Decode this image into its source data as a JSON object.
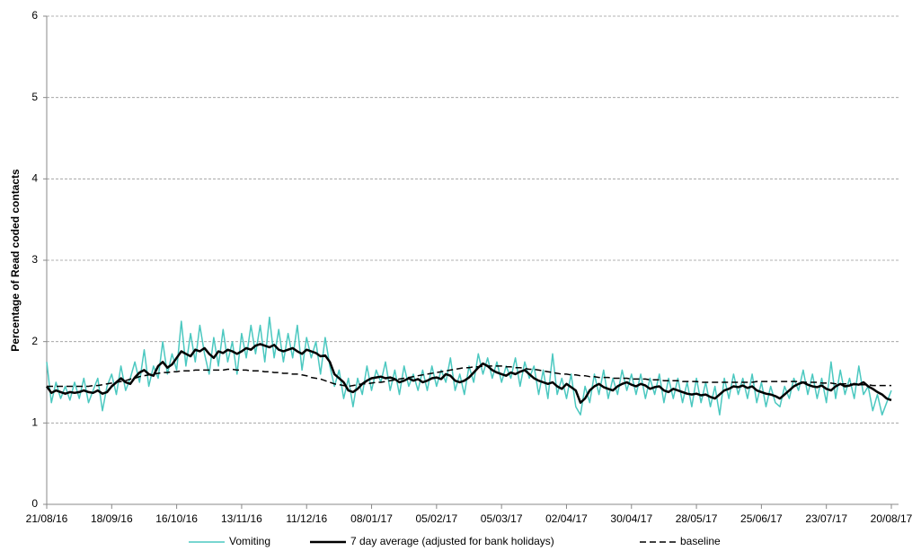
{
  "chart_data": {
    "type": "line",
    "y_label": "Percentage of Read coded contacts",
    "ylim": [
      0,
      6
    ],
    "yticks": [
      0,
      1,
      2,
      3,
      4,
      5,
      6
    ],
    "grid": true,
    "legend": "bottom",
    "x": [
      "21/08/16",
      "23/08/16",
      "25/08/16",
      "27/08/16",
      "29/08/16",
      "31/08/16",
      "02/09/16",
      "04/09/16",
      "06/09/16",
      "08/09/16",
      "10/09/16",
      "12/09/16",
      "14/09/16",
      "16/09/16",
      "18/09/16",
      "20/09/16",
      "22/09/16",
      "24/09/16",
      "26/09/16",
      "28/09/16",
      "30/09/16",
      "02/10/16",
      "04/10/16",
      "06/10/16",
      "08/10/16",
      "10/10/16",
      "12/10/16",
      "14/10/16",
      "16/10/16",
      "18/10/16",
      "20/10/16",
      "22/10/16",
      "24/10/16",
      "26/10/16",
      "28/10/16",
      "30/10/16",
      "01/11/16",
      "03/11/16",
      "05/11/16",
      "07/11/16",
      "09/11/16",
      "11/11/16",
      "13/11/16",
      "15/11/16",
      "17/11/16",
      "19/11/16",
      "21/11/16",
      "23/11/16",
      "25/11/16",
      "27/11/16",
      "29/11/16",
      "01/12/16",
      "03/12/16",
      "05/12/16",
      "07/12/16",
      "09/12/16",
      "11/12/16",
      "13/12/16",
      "15/12/16",
      "17/12/16",
      "19/12/16",
      "21/12/16",
      "23/12/16",
      "25/12/16",
      "27/12/16",
      "29/12/16",
      "31/12/16",
      "02/01/17",
      "04/01/17",
      "06/01/17",
      "08/01/17",
      "10/01/17",
      "12/01/17",
      "14/01/17",
      "16/01/17",
      "18/01/17",
      "20/01/17",
      "22/01/17",
      "24/01/17",
      "26/01/17",
      "28/01/17",
      "30/01/17",
      "01/02/17",
      "03/02/17",
      "05/02/17",
      "07/02/17",
      "09/02/17",
      "11/02/17",
      "13/02/17",
      "15/02/17",
      "17/02/17",
      "19/02/17",
      "21/02/17",
      "23/02/17",
      "25/02/17",
      "27/02/17",
      "01/03/17",
      "03/03/17",
      "05/03/17",
      "07/03/17",
      "09/03/17",
      "11/03/17",
      "13/03/17",
      "15/03/17",
      "17/03/17",
      "19/03/17",
      "21/03/17",
      "23/03/17",
      "25/03/17",
      "27/03/17",
      "29/03/17",
      "31/03/17",
      "02/04/17",
      "04/04/17",
      "06/04/17",
      "08/04/17",
      "10/04/17",
      "12/04/17",
      "14/04/17",
      "16/04/17",
      "18/04/17",
      "20/04/17",
      "22/04/17",
      "24/04/17",
      "26/04/17",
      "28/04/17",
      "30/04/17",
      "02/05/17",
      "04/05/17",
      "06/05/17",
      "08/05/17",
      "10/05/17",
      "12/05/17",
      "14/05/17",
      "16/05/17",
      "18/05/17",
      "20/05/17",
      "22/05/17",
      "24/05/17",
      "26/05/17",
      "28/05/17",
      "30/05/17",
      "01/06/17",
      "03/06/17",
      "05/06/17",
      "07/06/17",
      "09/06/17",
      "11/06/17",
      "13/06/17",
      "15/06/17",
      "17/06/17",
      "19/06/17",
      "21/06/17",
      "23/06/17",
      "25/06/17",
      "27/06/17",
      "29/06/17",
      "01/07/17",
      "03/07/17",
      "05/07/17",
      "07/07/17",
      "09/07/17",
      "11/07/17",
      "13/07/17",
      "15/07/17",
      "17/07/17",
      "19/07/17",
      "21/07/17",
      "23/07/17",
      "25/07/17",
      "27/07/17",
      "29/07/17",
      "31/07/17",
      "02/08/17",
      "04/08/17",
      "06/08/17",
      "08/08/17",
      "10/08/17",
      "12/08/17",
      "14/08/17",
      "16/08/17",
      "18/08/17",
      "20/08/17"
    ],
    "series": [
      {
        "name": "Vomiting",
        "color": "#4bc8c0",
        "width": 1.5,
        "dashed": false,
        "values": [
          1.75,
          1.25,
          1.5,
          1.3,
          1.45,
          1.28,
          1.5,
          1.3,
          1.55,
          1.25,
          1.4,
          1.55,
          1.15,
          1.45,
          1.6,
          1.35,
          1.7,
          1.4,
          1.55,
          1.75,
          1.5,
          1.9,
          1.45,
          1.7,
          1.55,
          2.0,
          1.6,
          1.85,
          1.65,
          2.25,
          1.7,
          2.1,
          1.75,
          2.2,
          1.85,
          1.6,
          2.05,
          1.7,
          2.15,
          1.75,
          2.0,
          1.6,
          2.1,
          1.8,
          2.2,
          1.85,
          2.2,
          1.75,
          2.3,
          1.8,
          2.15,
          1.75,
          2.1,
          1.8,
          2.2,
          1.65,
          2.05,
          1.8,
          2.0,
          1.6,
          2.05,
          1.7,
          1.45,
          1.65,
          1.3,
          1.55,
          1.2,
          1.55,
          1.35,
          1.7,
          1.4,
          1.65,
          1.5,
          1.75,
          1.4,
          1.65,
          1.35,
          1.7,
          1.45,
          1.6,
          1.4,
          1.65,
          1.4,
          1.7,
          1.45,
          1.65,
          1.5,
          1.8,
          1.4,
          1.6,
          1.35,
          1.7,
          1.5,
          1.85,
          1.6,
          1.8,
          1.55,
          1.75,
          1.5,
          1.7,
          1.55,
          1.8,
          1.45,
          1.75,
          1.55,
          1.7,
          1.35,
          1.65,
          1.3,
          1.85,
          1.35,
          1.55,
          1.3,
          1.6,
          1.2,
          1.1,
          1.45,
          1.25,
          1.6,
          1.35,
          1.65,
          1.3,
          1.55,
          1.35,
          1.65,
          1.4,
          1.6,
          1.35,
          1.6,
          1.3,
          1.55,
          1.35,
          1.6,
          1.25,
          1.55,
          1.3,
          1.55,
          1.25,
          1.5,
          1.2,
          1.55,
          1.25,
          1.5,
          1.2,
          1.45,
          1.1,
          1.55,
          1.3,
          1.6,
          1.35,
          1.55,
          1.3,
          1.6,
          1.25,
          1.5,
          1.2,
          1.45,
          1.25,
          1.2,
          1.45,
          1.3,
          1.55,
          1.4,
          1.65,
          1.35,
          1.6,
          1.3,
          1.55,
          1.25,
          1.75,
          1.3,
          1.65,
          1.35,
          1.55,
          1.3,
          1.7,
          1.35,
          1.45,
          1.15,
          1.35,
          1.1,
          1.25,
          1.4
        ]
      },
      {
        "name": "7 day average (adjusted for bank holidays)",
        "color": "#000000",
        "width": 2.5,
        "dashed": false,
        "values": [
          1.45,
          1.37,
          1.4,
          1.38,
          1.36,
          1.38,
          1.37,
          1.38,
          1.4,
          1.38,
          1.37,
          1.4,
          1.36,
          1.38,
          1.45,
          1.5,
          1.55,
          1.5,
          1.48,
          1.56,
          1.62,
          1.65,
          1.6,
          1.58,
          1.7,
          1.75,
          1.68,
          1.72,
          1.8,
          1.88,
          1.85,
          1.82,
          1.9,
          1.88,
          1.92,
          1.85,
          1.8,
          1.88,
          1.86,
          1.9,
          1.88,
          1.85,
          1.88,
          1.92,
          1.9,
          1.95,
          1.97,
          1.95,
          1.93,
          1.96,
          1.9,
          1.88,
          1.9,
          1.92,
          1.88,
          1.85,
          1.9,
          1.88,
          1.86,
          1.82,
          1.83,
          1.75,
          1.6,
          1.55,
          1.5,
          1.4,
          1.38,
          1.42,
          1.48,
          1.52,
          1.55,
          1.56,
          1.57,
          1.55,
          1.56,
          1.54,
          1.5,
          1.52,
          1.55,
          1.52,
          1.54,
          1.5,
          1.52,
          1.55,
          1.56,
          1.54,
          1.6,
          1.58,
          1.52,
          1.5,
          1.52,
          1.56,
          1.62,
          1.68,
          1.73,
          1.7,
          1.65,
          1.62,
          1.6,
          1.58,
          1.62,
          1.6,
          1.63,
          1.65,
          1.6,
          1.55,
          1.52,
          1.5,
          1.48,
          1.5,
          1.45,
          1.42,
          1.48,
          1.44,
          1.4,
          1.25,
          1.3,
          1.4,
          1.45,
          1.48,
          1.44,
          1.42,
          1.4,
          1.45,
          1.48,
          1.5,
          1.47,
          1.45,
          1.48,
          1.46,
          1.42,
          1.44,
          1.45,
          1.4,
          1.38,
          1.42,
          1.4,
          1.38,
          1.36,
          1.35,
          1.36,
          1.34,
          1.35,
          1.32,
          1.3,
          1.35,
          1.4,
          1.42,
          1.45,
          1.44,
          1.46,
          1.43,
          1.45,
          1.4,
          1.38,
          1.36,
          1.35,
          1.33,
          1.3,
          1.35,
          1.4,
          1.45,
          1.48,
          1.5,
          1.47,
          1.45,
          1.44,
          1.46,
          1.42,
          1.4,
          1.45,
          1.48,
          1.45,
          1.46,
          1.48,
          1.47,
          1.5,
          1.45,
          1.42,
          1.38,
          1.35,
          1.3,
          1.28
        ]
      },
      {
        "name": "baseline",
        "color": "#000000",
        "width": 1.5,
        "dashed": true,
        "values": [
          1.45,
          1.45,
          1.45,
          1.45,
          1.45,
          1.45,
          1.45,
          1.45,
          1.45,
          1.45,
          1.46,
          1.46,
          1.47,
          1.48,
          1.49,
          1.5,
          1.51,
          1.52,
          1.54,
          1.55,
          1.57,
          1.58,
          1.59,
          1.6,
          1.61,
          1.62,
          1.62,
          1.63,
          1.63,
          1.64,
          1.64,
          1.64,
          1.65,
          1.65,
          1.65,
          1.65,
          1.65,
          1.65,
          1.65,
          1.66,
          1.66,
          1.65,
          1.65,
          1.65,
          1.64,
          1.64,
          1.64,
          1.63,
          1.63,
          1.62,
          1.62,
          1.61,
          1.61,
          1.6,
          1.6,
          1.59,
          1.58,
          1.56,
          1.55,
          1.54,
          1.52,
          1.5,
          1.48,
          1.47,
          1.46,
          1.45,
          1.46,
          1.47,
          1.48,
          1.48,
          1.49,
          1.5,
          1.5,
          1.51,
          1.52,
          1.53,
          1.54,
          1.55,
          1.56,
          1.57,
          1.58,
          1.59,
          1.6,
          1.61,
          1.62,
          1.63,
          1.64,
          1.65,
          1.66,
          1.67,
          1.68,
          1.68,
          1.69,
          1.69,
          1.7,
          1.7,
          1.7,
          1.7,
          1.7,
          1.69,
          1.69,
          1.68,
          1.68,
          1.67,
          1.66,
          1.66,
          1.65,
          1.64,
          1.63,
          1.62,
          1.61,
          1.6,
          1.6,
          1.59,
          1.59,
          1.58,
          1.58,
          1.57,
          1.57,
          1.56,
          1.56,
          1.56,
          1.55,
          1.55,
          1.55,
          1.55,
          1.54,
          1.54,
          1.54,
          1.54,
          1.53,
          1.53,
          1.53,
          1.52,
          1.52,
          1.52,
          1.52,
          1.51,
          1.51,
          1.51,
          1.51,
          1.5,
          1.5,
          1.5,
          1.5,
          1.5,
          1.5,
          1.5,
          1.5,
          1.5,
          1.5,
          1.5,
          1.5,
          1.51,
          1.51,
          1.51,
          1.51,
          1.51,
          1.51,
          1.51,
          1.51,
          1.51,
          1.51,
          1.5,
          1.5,
          1.5,
          1.5,
          1.49,
          1.49,
          1.49,
          1.48,
          1.48,
          1.48,
          1.48,
          1.47,
          1.47,
          1.47,
          1.47,
          1.46,
          1.46,
          1.46,
          1.46,
          1.46
        ]
      }
    ]
  }
}
